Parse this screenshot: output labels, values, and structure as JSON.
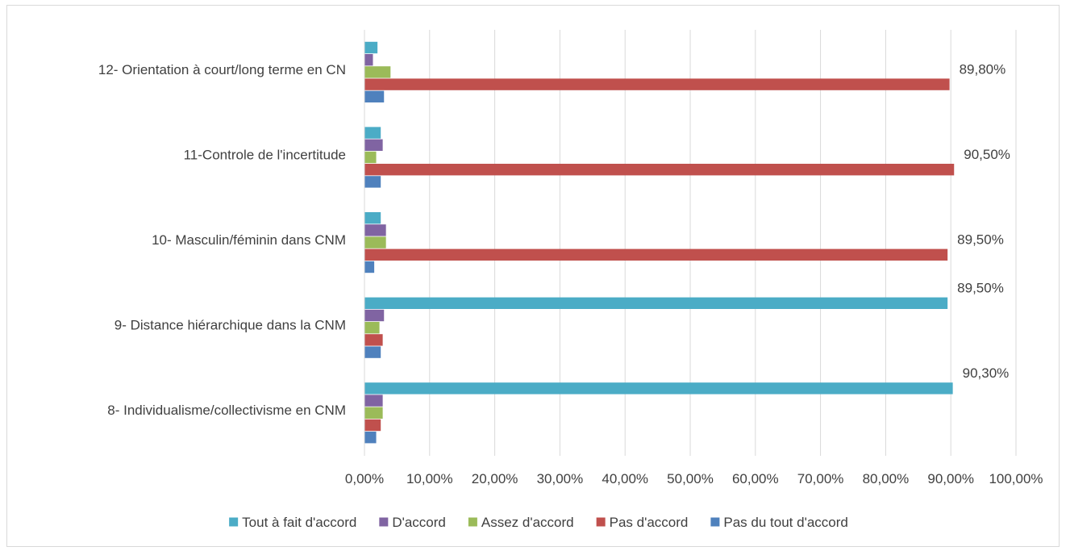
{
  "chart_data": {
    "type": "bar",
    "orientation": "horizontal",
    "title": "",
    "xlabel": "",
    "ylabel": "",
    "xlim": [
      0,
      100
    ],
    "x_ticks": [
      "0,00%",
      "10,00%",
      "20,00%",
      "30,00%",
      "40,00%",
      "50,00%",
      "60,00%",
      "70,00%",
      "80,00%",
      "90,00%",
      "100,00%"
    ],
    "grid": "vertical",
    "legend_position": "bottom",
    "categories": [
      "12- Orientation à court/long terme en CN",
      "11-Controle de l'incertitude",
      "10- Masculin/féminin dans CNM",
      "9- Distance hiérarchique dans la CNM",
      "8- Individualisme/collectivisme en CNM"
    ],
    "series": [
      {
        "name": "Tout à fait d'accord",
        "color": "#4bacc6",
        "values": [
          2.0,
          2.5,
          2.5,
          89.5,
          90.3
        ],
        "labels": [
          "",
          "",
          "",
          "89,50%",
          "90,30%"
        ]
      },
      {
        "name": "D'accord",
        "color": "#8064a2",
        "values": [
          1.3,
          2.8,
          3.3,
          3.0,
          2.8
        ],
        "labels": [
          "",
          "",
          "",
          "",
          ""
        ]
      },
      {
        "name": "Assez d'accord",
        "color": "#9bbb59",
        "values": [
          4.0,
          1.8,
          3.3,
          2.3,
          2.8
        ],
        "labels": [
          "",
          "",
          "",
          "",
          ""
        ]
      },
      {
        "name": "Pas d'accord",
        "color": "#c0504d",
        "values": [
          89.8,
          90.5,
          89.5,
          2.8,
          2.5
        ],
        "labels": [
          "89,80%",
          "90,50%",
          "89,50%",
          "",
          ""
        ]
      },
      {
        "name": "Pas du tout d'accord",
        "color": "#4f81bd",
        "values": [
          3.0,
          2.5,
          1.5,
          2.5,
          1.8
        ],
        "labels": [
          "",
          "",
          "",
          "",
          ""
        ]
      }
    ]
  }
}
